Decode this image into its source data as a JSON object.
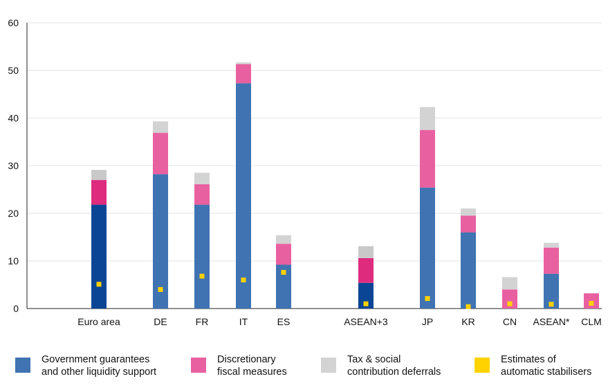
{
  "chart_data": {
    "type": "bar",
    "stacked": true,
    "ylim": [
      0,
      60
    ],
    "yticks": [
      0,
      10,
      20,
      30,
      40,
      50,
      60
    ],
    "grid": true,
    "legend_position": "bottom",
    "categories": [
      "Euro area",
      "DE",
      "FR",
      "IT",
      "ES",
      "ASEAN+3",
      "JP",
      "KR",
      "CN",
      "ASEAN*",
      "CLM"
    ],
    "aggregates": [
      "Euro area",
      "ASEAN+3"
    ],
    "series": [
      {
        "name": "Government guarantees and other liquidity support",
        "color": "#3f73b1",
        "aggregate_color": "#0a4595",
        "values": [
          21.8,
          28.2,
          21.8,
          47.3,
          9.2,
          5.4,
          25.4,
          16.0,
          0,
          7.3,
          0
        ]
      },
      {
        "name": "Discretionary fiscal measures",
        "color": "#e8609f",
        "aggregate_color": "#de2b7e",
        "values": [
          5.2,
          8.7,
          4.3,
          4.0,
          4.4,
          5.2,
          12.1,
          3.5,
          4.0,
          5.5,
          3.2
        ]
      },
      {
        "name": "Tax & social contribution deferrals",
        "color": "#d3d3d3",
        "aggregate_color": "#c9c9c9",
        "values": [
          2.1,
          2.4,
          2.4,
          0.4,
          1.8,
          2.5,
          4.8,
          1.5,
          2.6,
          1.0,
          0
        ]
      }
    ],
    "markers": {
      "name": "Estimates of automatic stabilisers",
      "color": "#ffd200",
      "values": [
        5.1,
        4.0,
        6.8,
        6.0,
        7.6,
        1.0,
        2.1,
        0.4,
        1.0,
        0.9,
        1.1
      ]
    }
  },
  "legend": [
    {
      "key": "guarantees",
      "color": "#3f73b1",
      "lines": [
        "Government guarantees",
        "and other liquidity support"
      ]
    },
    {
      "key": "discretionary",
      "color": "#e8609f",
      "lines": [
        "Discretionary",
        "fiscal measures"
      ]
    },
    {
      "key": "deferrals",
      "color": "#d3d3d3",
      "lines": [
        "Tax & social",
        "contribution deferrals"
      ]
    },
    {
      "key": "stabilisers",
      "color": "#ffd200",
      "lines": [
        "Estimates of",
        "automatic stabilisers"
      ]
    }
  ]
}
